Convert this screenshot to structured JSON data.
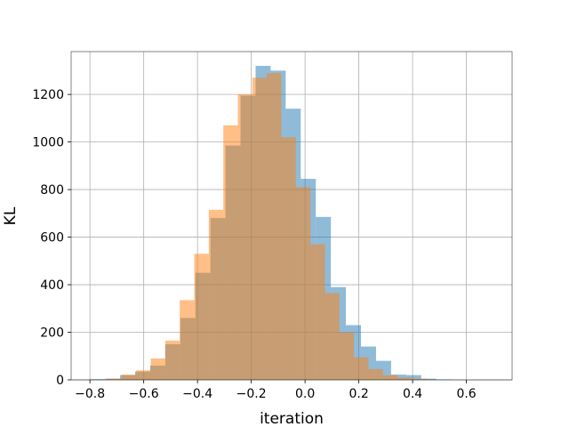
{
  "chart_data": {
    "type": "bar",
    "subtype": "overlapping-histogram",
    "title": "",
    "xlabel": "iteration",
    "ylabel": "KL",
    "xlim": [
      -0.87,
      0.77
    ],
    "ylim": [
      0,
      1380
    ],
    "grid": true,
    "legend": "none",
    "x_ticks": [
      -0.8,
      -0.6,
      -0.4,
      -0.2,
      0.0,
      0.2,
      0.4,
      0.6
    ],
    "x_tick_labels": [
      "−0.8",
      "−0.6",
      "−0.4",
      "−0.2",
      "0.0",
      "0.2",
      "0.4",
      "0.6"
    ],
    "y_ticks": [
      0,
      200,
      400,
      600,
      800,
      1000,
      1200
    ],
    "y_tick_labels": [
      "0",
      "200",
      "400",
      "600",
      "800",
      "1000",
      "1200"
    ],
    "series": [
      {
        "color": "#1f77b4",
        "opacity": 0.5,
        "bin_edges": [
          -0.8,
          -0.744,
          -0.688,
          -0.632,
          -0.576,
          -0.52,
          -0.464,
          -0.408,
          -0.352,
          -0.296,
          -0.24,
          -0.184,
          -0.128,
          -0.072,
          -0.016,
          0.04,
          0.096,
          0.152,
          0.208,
          0.264,
          0.32,
          0.376,
          0.432,
          0.488,
          0.544,
          0.6
        ],
        "values": [
          3,
          5,
          20,
          35,
          60,
          150,
          260,
          450,
          680,
          985,
          1195,
          1320,
          1300,
          1140,
          845,
          685,
          390,
          230,
          140,
          80,
          22,
          20,
          5,
          2,
          0
        ]
      },
      {
        "color": "#ff7f0e",
        "opacity": 0.5,
        "bin_edges": [
          -0.79,
          -0.736,
          -0.682,
          -0.628,
          -0.574,
          -0.52,
          -0.466,
          -0.412,
          -0.358,
          -0.304,
          -0.25,
          -0.196,
          -0.142,
          -0.088,
          -0.034,
          0.02,
          0.074,
          0.128,
          0.182,
          0.236,
          0.29,
          0.344,
          0.398,
          0.452
        ],
        "values": [
          0,
          5,
          22,
          40,
          90,
          165,
          335,
          530,
          715,
          1070,
          1200,
          1270,
          1290,
          1020,
          810,
          570,
          365,
          200,
          95,
          45,
          20,
          10,
          5
        ]
      }
    ]
  }
}
